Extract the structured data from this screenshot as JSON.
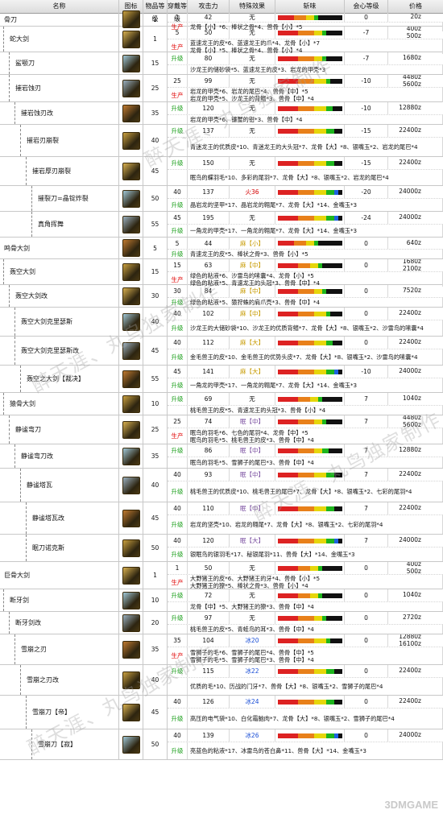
{
  "header": {
    "name": "名称",
    "icon": "图标",
    "rarity": "物品等级",
    "slot": "穿戴等级",
    "attack": "攻击力",
    "special": "特殊效果",
    "sharpness": "斩味",
    "affinity": "会心等级",
    "price": "价格"
  },
  "labels": {
    "make": "生产",
    "upgrade": "升级"
  },
  "watermark": "醉天涯、丸鸟独家制作",
  "corner_logo": "3DMGAME",
  "weapons": [
    {
      "name": "骨刀",
      "indent": 0,
      "rarity": "1",
      "rows": [
        {
          "tag": "",
          "slot": "1",
          "atk": "42",
          "sp": "无",
          "spc": "",
          "aff": "0",
          "sharp": [
            20,
            15,
            10,
            5,
            0,
            0
          ],
          "price": "20z",
          "mat": ""
        },
        {
          "tag": "生产",
          "slot": "",
          "atk": "",
          "sp": "",
          "spc": "",
          "aff": "",
          "sharp": null,
          "price": "",
          "mat": "龙骨【小】*6、棒状之骨*4、兽骨【小】*5"
        }
      ]
    },
    {
      "name": "蛇大剑",
      "indent": 1,
      "rarity": "1",
      "rows": [
        {
          "tag": "",
          "slot": "5",
          "atk": "50",
          "sp": "无",
          "spc": "",
          "aff": "-7",
          "sharp": [
            25,
            20,
            10,
            5,
            0,
            0
          ],
          "price": "400z\n500z",
          "mat": ""
        },
        {
          "tag": "生产",
          "slot": "",
          "atk": "",
          "sp": "",
          "spc": "",
          "aff": "",
          "sharp": null,
          "price": "",
          "mat": "蓝速龙王的皮*6、蓝速龙王的爪*4、龙骨【小】*7\n龙骨【小】*5、棒状之骨*4、兽骨【小】*4"
        }
      ]
    },
    {
      "name": "鲨颚刀",
      "indent": 2,
      "rarity": "15",
      "rows": [
        {
          "tag": "升级",
          "slot": "15",
          "atk": "80",
          "sp": "无",
          "spc": "",
          "aff": "-7",
          "sharp": [
            25,
            20,
            10,
            5,
            0,
            0
          ],
          "price": "1680z",
          "mat": "沙龙王的储砂袋*5、蓝速龙王的皮*3、岩龙的甲壳*3"
        }
      ]
    },
    {
      "name": "摧岩蚀刃",
      "indent": 2,
      "rarity": "25",
      "rows": [
        {
          "tag": "",
          "slot": "25",
          "atk": "99",
          "sp": "无",
          "spc": "",
          "aff": "-10",
          "sharp": [
            25,
            20,
            15,
            5,
            0,
            0
          ],
          "price": "4480z\n5600z",
          "mat": ""
        },
        {
          "tag": "生产",
          "slot": "",
          "atk": "",
          "sp": "",
          "spc": "",
          "aff": "",
          "sharp": null,
          "price": "",
          "mat": "岩龙的甲壳*6、岩龙的尾巴*4、兽骨【中】*5\n岩龙的甲壳*5、沙龙王的背鳍*3、兽骨【中】*4"
        }
      ]
    },
    {
      "name": "摧岩蚀刃改",
      "indent": 3,
      "rarity": "35",
      "rows": [
        {
          "tag": "升级",
          "slot": "35",
          "atk": "120",
          "sp": "无",
          "spc": "",
          "aff": "-10",
          "sharp": [
            25,
            20,
            15,
            8,
            0,
            0
          ],
          "price": "12880z",
          "mat": "岩龙的甲壳*6、镰蟹的钳*3、兽骨【中】*4"
        }
      ]
    },
    {
      "name": "摧岩刃崩裂",
      "indent": 4,
      "rarity": "40",
      "rows": [
        {
          "tag": "升级",
          "slot": "40",
          "atk": "137",
          "sp": "无",
          "spc": "",
          "aff": "-15",
          "sharp": [
            25,
            20,
            15,
            10,
            0,
            0
          ],
          "price": "22400z",
          "mat": "青迷龙王的优质皮*10、青迷龙王的大头冠*7、龙骨【大】*8、银嘴玉*2、岩龙的尾巴*4"
        }
      ]
    },
    {
      "name": "摧岩厚刃崩裂",
      "indent": 5,
      "rarity": "45",
      "rows": [
        {
          "tag": "升级",
          "slot": "40",
          "atk": "150",
          "sp": "无",
          "spc": "",
          "aff": "-15",
          "sharp": [
            25,
            20,
            15,
            10,
            0,
            0
          ],
          "price": "22400z",
          "mat": "眠鸟的蝶羽毛*10、多彩的尾羽*7、龙骨【大】*8、银嘴玉*2、岩龙的尾巴*4"
        }
      ]
    },
    {
      "name": "摧裂刀=晶锭炸裂",
      "indent": 6,
      "rarity": "50",
      "rows": [
        {
          "tag": "",
          "slot": "40",
          "atk": "137",
          "sp": "火36",
          "spc": "fire",
          "aff": "-20",
          "sharp": [
            25,
            20,
            15,
            10,
            5,
            0
          ],
          "price": "24000z",
          "mat": ""
        },
        {
          "tag": "升级",
          "slot": "",
          "atk": "",
          "sp": "",
          "spc": "",
          "aff": "",
          "sharp": null,
          "price": "",
          "mat": "晶岩龙的坚甲*17、晶岩龙的翱尾*7、龙骨【大】*14、金嘴玉*3"
        }
      ]
    },
    {
      "name": "真角挥舞",
      "indent": 6,
      "rarity": "55",
      "rows": [
        {
          "tag": "",
          "slot": "45",
          "atk": "195",
          "sp": "无",
          "spc": "",
          "aff": "-24",
          "sharp": [
            25,
            20,
            15,
            10,
            5,
            0
          ],
          "price": "24000z",
          "mat": ""
        },
        {
          "tag": "升级",
          "slot": "",
          "atk": "",
          "sp": "",
          "spc": "",
          "aff": "",
          "sharp": null,
          "price": "",
          "mat": "一角龙的甲壳*17、一角龙的翱尾*7、龙骨【大】*14、金嘴玉*3"
        }
      ]
    },
    {
      "name": "鸣骨大剑",
      "indent": 0,
      "rarity": "5",
      "rows": [
        {
          "tag": "",
          "slot": "5",
          "atk": "44",
          "sp": "麻【小】",
          "spc": "para",
          "aff": "0",
          "sharp": [
            20,
            15,
            10,
            5,
            0,
            0
          ],
          "price": "640z",
          "mat": ""
        },
        {
          "tag": "升级",
          "slot": "",
          "atk": "",
          "sp": "",
          "spc": "",
          "aff": "",
          "sharp": null,
          "price": "",
          "mat": "青速龙王的皮*5、棒状之骨*3、兽骨【小】*5"
        }
      ]
    },
    {
      "name": "轰空大剑",
      "indent": 1,
      "rarity": "15",
      "rows": [
        {
          "tag": "",
          "slot": "15",
          "atk": "63",
          "sp": "麻【中】",
          "spc": "para",
          "aff": "0",
          "sharp": [
            25,
            15,
            10,
            5,
            0,
            0
          ],
          "price": "1680z\n2100z",
          "mat": ""
        },
        {
          "tag": "生产",
          "slot": "",
          "atk": "",
          "sp": "",
          "spc": "",
          "aff": "",
          "sharp": null,
          "price": "",
          "mat": "绿色的粘液*6、沙雷鸟的嗉囊*4、龙骨【小】*5\n绿色的粘液*5、青速龙王的头冠*3、兽骨【中】*4"
        }
      ]
    },
    {
      "name": "轰空大剑改",
      "indent": 2,
      "rarity": "30",
      "rows": [
        {
          "tag": "",
          "slot": "30",
          "atk": "84",
          "sp": "麻【中】",
          "spc": "para",
          "aff": "0",
          "sharp": [
            25,
            20,
            10,
            5,
            0,
            0
          ],
          "price": "7520z",
          "mat": ""
        },
        {
          "tag": "升级",
          "slot": "",
          "atk": "",
          "sp": "",
          "spc": "",
          "aff": "",
          "sharp": null,
          "price": "",
          "mat": "绿色的粘液*5、猿狩蛛的肩爪壳*3、兽骨【中】*4"
        }
      ]
    },
    {
      "name": "轰空大剑克里瑟斯",
      "indent": 3,
      "rarity": "40",
      "rows": [
        {
          "tag": "",
          "slot": "40",
          "atk": "102",
          "sp": "麻【中】",
          "spc": "para",
          "aff": "0",
          "sharp": [
            25,
            20,
            15,
            5,
            0,
            0
          ],
          "price": "22400z",
          "mat": ""
        },
        {
          "tag": "升级",
          "slot": "",
          "atk": "",
          "sp": "",
          "spc": "",
          "aff": "",
          "sharp": null,
          "price": "",
          "mat": "沙龙王的大储砂袋*10、沙龙王的优质背鳍*7、龙骨【大】*8、银嘴玉*2、沙雷鸟的嗉囊*4"
        }
      ]
    },
    {
      "name": "轰空大剑克里瑟斯改",
      "indent": 3,
      "rarity": "45",
      "rows": [
        {
          "tag": "",
          "slot": "40",
          "atk": "112",
          "sp": "麻【大】",
          "spc": "para",
          "aff": "0",
          "sharp": [
            25,
            20,
            15,
            8,
            0,
            0
          ],
          "price": "22400z",
          "mat": ""
        },
        {
          "tag": "升级",
          "slot": "",
          "atk": "",
          "sp": "",
          "spc": "",
          "aff": "",
          "sharp": null,
          "price": "",
          "mat": "金毛兽王的皮*10、金毛兽王的优势头皮*7、龙骨【大】*8、银嘴玉*2、沙雷鸟的嗉囊*4"
        }
      ]
    },
    {
      "name": "轰空之大剑【裁决】",
      "indent": 4,
      "rarity": "55",
      "rows": [
        {
          "tag": "",
          "slot": "45",
          "atk": "141",
          "sp": "麻【大】",
          "spc": "para",
          "aff": "-10",
          "sharp": [
            25,
            20,
            15,
            10,
            5,
            0
          ],
          "price": "24000z",
          "mat": ""
        },
        {
          "tag": "升级",
          "slot": "",
          "atk": "",
          "sp": "",
          "spc": "",
          "aff": "",
          "sharp": null,
          "price": "",
          "mat": "一角龙的甲壳*17、一角龙的翱尾*7、龙骨【大】*14、金嘴玉*3"
        }
      ]
    },
    {
      "name": "猿骨大剑",
      "indent": 1,
      "rarity": "10",
      "rows": [
        {
          "tag": "升级",
          "slot": "10",
          "atk": "69",
          "sp": "无",
          "spc": "",
          "aff": "7",
          "sharp": [
            25,
            15,
            10,
            5,
            0,
            0
          ],
          "price": "1040z",
          "mat": "桃毛兽王的皮*5、青速龙王的头冠*3、兽骨【小】*4"
        }
      ]
    },
    {
      "name": "静谧弯刀",
      "indent": 2,
      "rarity": "25",
      "rows": [
        {
          "tag": "",
          "slot": "25",
          "atk": "74",
          "sp": "眠【中】",
          "spc": "sleep",
          "aff": "7",
          "sharp": [
            25,
            20,
            10,
            5,
            0,
            0
          ],
          "price": "4480z\n5600z",
          "mat": ""
        },
        {
          "tag": "生产",
          "slot": "",
          "atk": "",
          "sp": "",
          "spc": "",
          "aff": "",
          "sharp": null,
          "price": "",
          "mat": "眠鸟的羽毛*6、七色的尾羽*4、龙骨【中】*5\n眠鸟的羽毛*5、桃毛兽王的皮*3、兽骨【中】*4"
        }
      ]
    },
    {
      "name": "静谧弯刀改",
      "indent": 3,
      "rarity": "35",
      "rows": [
        {
          "tag": "升级",
          "slot": "35",
          "atk": "86",
          "sp": "眠【中】",
          "spc": "sleep",
          "aff": "7",
          "sharp": [
            25,
            20,
            10,
            8,
            0,
            0
          ],
          "price": "12880z",
          "mat": "眠鸟的羽毛*5、雪狮子的尾巴*3、兽骨【中】*4"
        }
      ]
    },
    {
      "name": "静谧塔瓦",
      "indent": 4,
      "rarity": "40",
      "rows": [
        {
          "tag": "",
          "slot": "40",
          "atk": "93",
          "sp": "眠【中】",
          "spc": "sleep",
          "aff": "7",
          "sharp": [
            25,
            20,
            15,
            10,
            0,
            0
          ],
          "price": "22400z",
          "mat": ""
        },
        {
          "tag": "升级",
          "slot": "",
          "atk": "",
          "sp": "",
          "spc": "",
          "aff": "",
          "sharp": null,
          "price": "",
          "mat": "桃毛兽王的优质皮*10、桃毛兽王的尾巴*7、龙骨【大】*8、银嘴玉*2、七彩的尾羽*4"
        }
      ]
    },
    {
      "name": "静谧塔瓦改",
      "indent": 5,
      "rarity": "45",
      "rows": [
        {
          "tag": "",
          "slot": "40",
          "atk": "110",
          "sp": "眠【中】",
          "spc": "sleep",
          "aff": "7",
          "sharp": [
            25,
            20,
            15,
            10,
            0,
            0
          ],
          "price": "22400z",
          "mat": ""
        },
        {
          "tag": "升级",
          "slot": "",
          "atk": "",
          "sp": "",
          "spc": "",
          "aff": "",
          "sharp": null,
          "price": "",
          "mat": "岩龙的坚壳*10、岩龙的翱尾*7、龙骨【大】*8、银嘴玉*2、七彩的尾羽*4"
        }
      ]
    },
    {
      "name": "眠刀诺克斯",
      "indent": 5,
      "rarity": "50",
      "rows": [
        {
          "tag": "",
          "slot": "40",
          "atk": "120",
          "sp": "眠【大】",
          "spc": "sleep",
          "aff": "7",
          "sharp": [
            25,
            20,
            15,
            10,
            5,
            0
          ],
          "price": "24000z",
          "mat": ""
        },
        {
          "tag": "升级",
          "slot": "",
          "atk": "",
          "sp": "",
          "spc": "",
          "aff": "",
          "sharp": null,
          "price": "",
          "mat": "银眠鸟的银羽毛*17、秘银尾羽*11、兽骨【大】*14、金嘴玉*3"
        }
      ]
    },
    {
      "name": "巨骨大剑",
      "indent": 0,
      "rarity": "1",
      "rows": [
        {
          "tag": "",
          "slot": "1",
          "atk": "50",
          "sp": "无",
          "spc": "",
          "aff": "0",
          "sharp": [
            25,
            15,
            10,
            5,
            0,
            0
          ],
          "price": "400z\n500z",
          "mat": ""
        },
        {
          "tag": "生产",
          "slot": "",
          "atk": "",
          "sp": "",
          "spc": "",
          "aff": "",
          "sharp": null,
          "price": "",
          "mat": "大野猪王的皮*6、大野猪王的牙*4、兽骨【小】*5\n大野猪王的獠*5、棒状之骨*3、兽骨【小】*4"
        }
      ]
    },
    {
      "name": "断牙剑",
      "indent": 1,
      "rarity": "10",
      "rows": [
        {
          "tag": "升级",
          "slot": "10",
          "atk": "72",
          "sp": "无",
          "spc": "",
          "aff": "0",
          "sharp": [
            25,
            15,
            10,
            5,
            0,
            0
          ],
          "price": "1040z",
          "mat": "龙骨【中】*5、大野猪王的獠*3、兽骨【中】*4"
        }
      ]
    },
    {
      "name": "断牙剑改",
      "indent": 2,
      "rarity": "20",
      "rows": [
        {
          "tag": "升级",
          "slot": "20",
          "atk": "97",
          "sp": "无",
          "spc": "",
          "aff": "0",
          "sharp": [
            25,
            20,
            10,
            5,
            0,
            0
          ],
          "price": "2720z",
          "mat": "桃毛兽王的皮*5、青蛙鸟的耳*3、兽骨【中】*4"
        }
      ]
    },
    {
      "name": "雪崩之刃",
      "indent": 3,
      "rarity": "35",
      "rows": [
        {
          "tag": "",
          "slot": "35",
          "atk": "104",
          "sp": "冰20",
          "spc": "ice",
          "aff": "0",
          "sharp": [
            25,
            20,
            15,
            5,
            0,
            0
          ],
          "price": "12880z\n16100z",
          "mat": ""
        },
        {
          "tag": "生产",
          "slot": "",
          "atk": "",
          "sp": "",
          "spc": "",
          "aff": "",
          "sharp": null,
          "price": "",
          "mat": "雪狮子的毛*6、雪狮子的尾巴*4、兽骨【中】*5\n雪狮子的毛*5、雪狮子的尾巴*3、兽骨【中】*4"
        }
      ]
    },
    {
      "name": "雪崩之刃改",
      "indent": 4,
      "rarity": "40",
      "rows": [
        {
          "tag": "升级",
          "slot": "40",
          "atk": "115",
          "sp": "冰22",
          "spc": "ice",
          "aff": "0",
          "sharp": [
            25,
            20,
            15,
            10,
            0,
            0
          ],
          "price": "22400z",
          "mat": "优质的毛*10、历战的门牙*7、兽骨【大】*8、银嘴玉*2、雪狮子的尾巴*4"
        }
      ]
    },
    {
      "name": "雪崩刀【帝】",
      "indent": 5,
      "rarity": "45",
      "rows": [
        {
          "tag": "",
          "slot": "40",
          "atk": "126",
          "sp": "冰24",
          "spc": "ice",
          "aff": "0",
          "sharp": [
            25,
            20,
            15,
            10,
            0,
            0
          ],
          "price": "22400z",
          "mat": ""
        },
        {
          "tag": "升级",
          "slot": "",
          "atk": "",
          "sp": "",
          "spc": "",
          "aff": "",
          "sharp": null,
          "price": "",
          "mat": "高压的电气袋*10、白化霜脑肉*7、龙骨【大】*8、银嘴玉*2、雪狮子的尾巴*4"
        }
      ]
    },
    {
      "name": "雪崩刀【寂】",
      "indent": 6,
      "rarity": "50",
      "rows": [
        {
          "tag": "",
          "slot": "40",
          "atk": "139",
          "sp": "冰26",
          "spc": "ice",
          "aff": "0",
          "sharp": [
            25,
            20,
            15,
            10,
            5,
            0
          ],
          "price": "24000z",
          "mat": ""
        },
        {
          "tag": "升级",
          "slot": "",
          "atk": "",
          "sp": "",
          "spc": "",
          "aff": "",
          "sharp": null,
          "price": "",
          "mat": "亮蓝色的粘液*17、冰雷鸟的苍白鼻*11、兽骨【大】*14、金嘴玉*3"
        }
      ]
    }
  ],
  "colors": {
    "sharp": [
      "#d22",
      "#e8801a",
      "#e6d60a",
      "#1db51d",
      "#1e62e0",
      "#f4f4f4"
    ],
    "make": "#e00000",
    "upgrade": "#1ea01e"
  }
}
